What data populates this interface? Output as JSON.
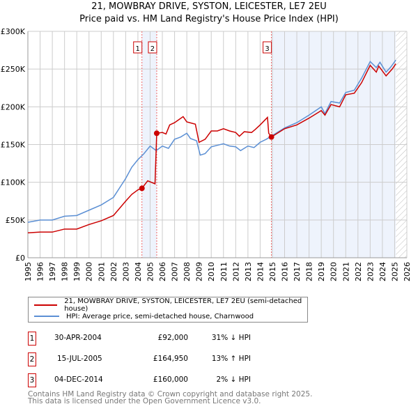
{
  "title": "21, MOWBRAY DRIVE, SYSTON, LEICESTER, LE7 2EU",
  "subtitle": "Price paid vs. HM Land Registry's House Price Index (HPI)",
  "colors": {
    "property": "#cc0000",
    "hpi": "#5b8fd4",
    "shade": "#eef3fc"
  },
  "chart_data": {
    "type": "line",
    "xlim": [
      1995,
      2026
    ],
    "ylim": [
      0,
      300000
    ],
    "yticks": [
      {
        "v": 0,
        "label": "£0"
      },
      {
        "v": 50000,
        "label": "£50K"
      },
      {
        "v": 100000,
        "label": "£100K"
      },
      {
        "v": 150000,
        "label": "£150K"
      },
      {
        "v": 200000,
        "label": "£200K"
      },
      {
        "v": 250000,
        "label": "£250K"
      },
      {
        "v": 300000,
        "label": "£300K"
      }
    ],
    "xticks": [
      "1995",
      "1996",
      "1997",
      "1998",
      "1999",
      "2000",
      "2001",
      "2002",
      "2003",
      "2004",
      "2005",
      "2006",
      "2007",
      "2008",
      "2009",
      "2010",
      "2011",
      "2012",
      "2013",
      "2014",
      "2015",
      "2016",
      "2017",
      "2018",
      "2019",
      "2020",
      "2021",
      "2022",
      "2023",
      "2024",
      "2025",
      "2026"
    ],
    "series": [
      {
        "name": "21, MOWBRAY DRIVE, SYSTON, LEICESTER, LE7 2EU (semi-detached house)",
        "color": "#cc0000",
        "x": [
          1995,
          1996,
          1997,
          1998,
          1999,
          2000,
          2001,
          2002,
          2003,
          2003.5,
          2004,
          2004.33,
          2004.8,
          2005.4,
          2005.54,
          2006,
          2006.3,
          2006.6,
          2007,
          2007.7,
          2008,
          2008.7,
          2009,
          2009.5,
          2010,
          2010.5,
          2011,
          2011.5,
          2012,
          2012.3,
          2012.7,
          2013.3,
          2013.6,
          2014,
          2014.6,
          2014.7,
          2014.92,
          2016,
          2017,
          2018,
          2019,
          2019.3,
          2019.8,
          2020.5,
          2021,
          2021.7,
          2022.3,
          2023,
          2023.5,
          2023.7,
          2024.3,
          2024.8,
          2025.1
        ],
        "y": [
          33000,
          34000,
          34000,
          38000,
          38000,
          44000,
          49000,
          56000,
          75000,
          84000,
          90000,
          92000,
          102000,
          98000,
          164950,
          166000,
          164000,
          176000,
          179000,
          187000,
          180000,
          177000,
          153000,
          157000,
          168000,
          168000,
          171000,
          168000,
          166000,
          161000,
          167000,
          166000,
          170000,
          176000,
          186000,
          165000,
          160000,
          171000,
          176000,
          185000,
          195000,
          189000,
          203000,
          200000,
          216000,
          218000,
          232000,
          255000,
          246000,
          254000,
          241000,
          250000,
          257000
        ]
      },
      {
        "name": "HPI: Average price, semi-detached house, Charnwood",
        "color": "#5b8fd4",
        "x": [
          1995,
          1996,
          1997,
          1998,
          1999,
          2000,
          2001,
          2002,
          2003,
          2003.5,
          2004,
          2004.5,
          2005,
          2005.5,
          2006,
          2006.5,
          2007,
          2007.5,
          2008,
          2008.3,
          2008.8,
          2009.1,
          2009.5,
          2010,
          2010.5,
          2011,
          2011.5,
          2012,
          2012.4,
          2013,
          2013.5,
          2014,
          2014.5,
          2015,
          2016,
          2017,
          2018,
          2019,
          2019.3,
          2019.8,
          2020.5,
          2021,
          2021.7,
          2022.3,
          2023,
          2023.5,
          2023.8,
          2024.3,
          2024.7,
          2025.1
        ],
        "y": [
          47000,
          50000,
          50000,
          55000,
          56000,
          63000,
          70000,
          80000,
          105000,
          120000,
          130000,
          138000,
          148000,
          142000,
          148000,
          145000,
          157000,
          160000,
          165000,
          158000,
          155000,
          136000,
          138000,
          147000,
          149000,
          151000,
          148000,
          147000,
          142000,
          148000,
          146000,
          153000,
          157000,
          162000,
          172000,
          179000,
          189000,
          200000,
          191000,
          207000,
          205000,
          219000,
          222000,
          238000,
          260000,
          252000,
          259000,
          246000,
          253000,
          262000
        ]
      }
    ],
    "sales": [
      {
        "n": "1",
        "x": 2004.33,
        "y": 92000,
        "date": "30-APR-2004",
        "price": "£92,000",
        "hpi": "31% ↓ HPI"
      },
      {
        "n": "2",
        "x": 2005.54,
        "y": 164950,
        "date": "15-JUL-2005",
        "price": "£164,950",
        "hpi": "13% ↑ HPI"
      },
      {
        "n": "3",
        "x": 2014.92,
        "y": 160000,
        "date": "04-DEC-2014",
        "price": "£160,000",
        "hpi": "2% ↓ HPI"
      }
    ],
    "shaded": [
      [
        2004.33,
        2005.54
      ],
      [
        2014.92,
        2025.1
      ]
    ],
    "hatched_from": 2025.1
  },
  "legend": {
    "property": "21, MOWBRAY DRIVE, SYSTON, LEICESTER, LE7 2EU (semi-detached house)",
    "hpi": "HPI: Average price, semi-detached house, Charnwood"
  },
  "footer": {
    "line1": "Contains HM Land Registry data © Crown copyright and database right 2025.",
    "line2": "This data is licensed under the Open Government Licence v3.0."
  }
}
